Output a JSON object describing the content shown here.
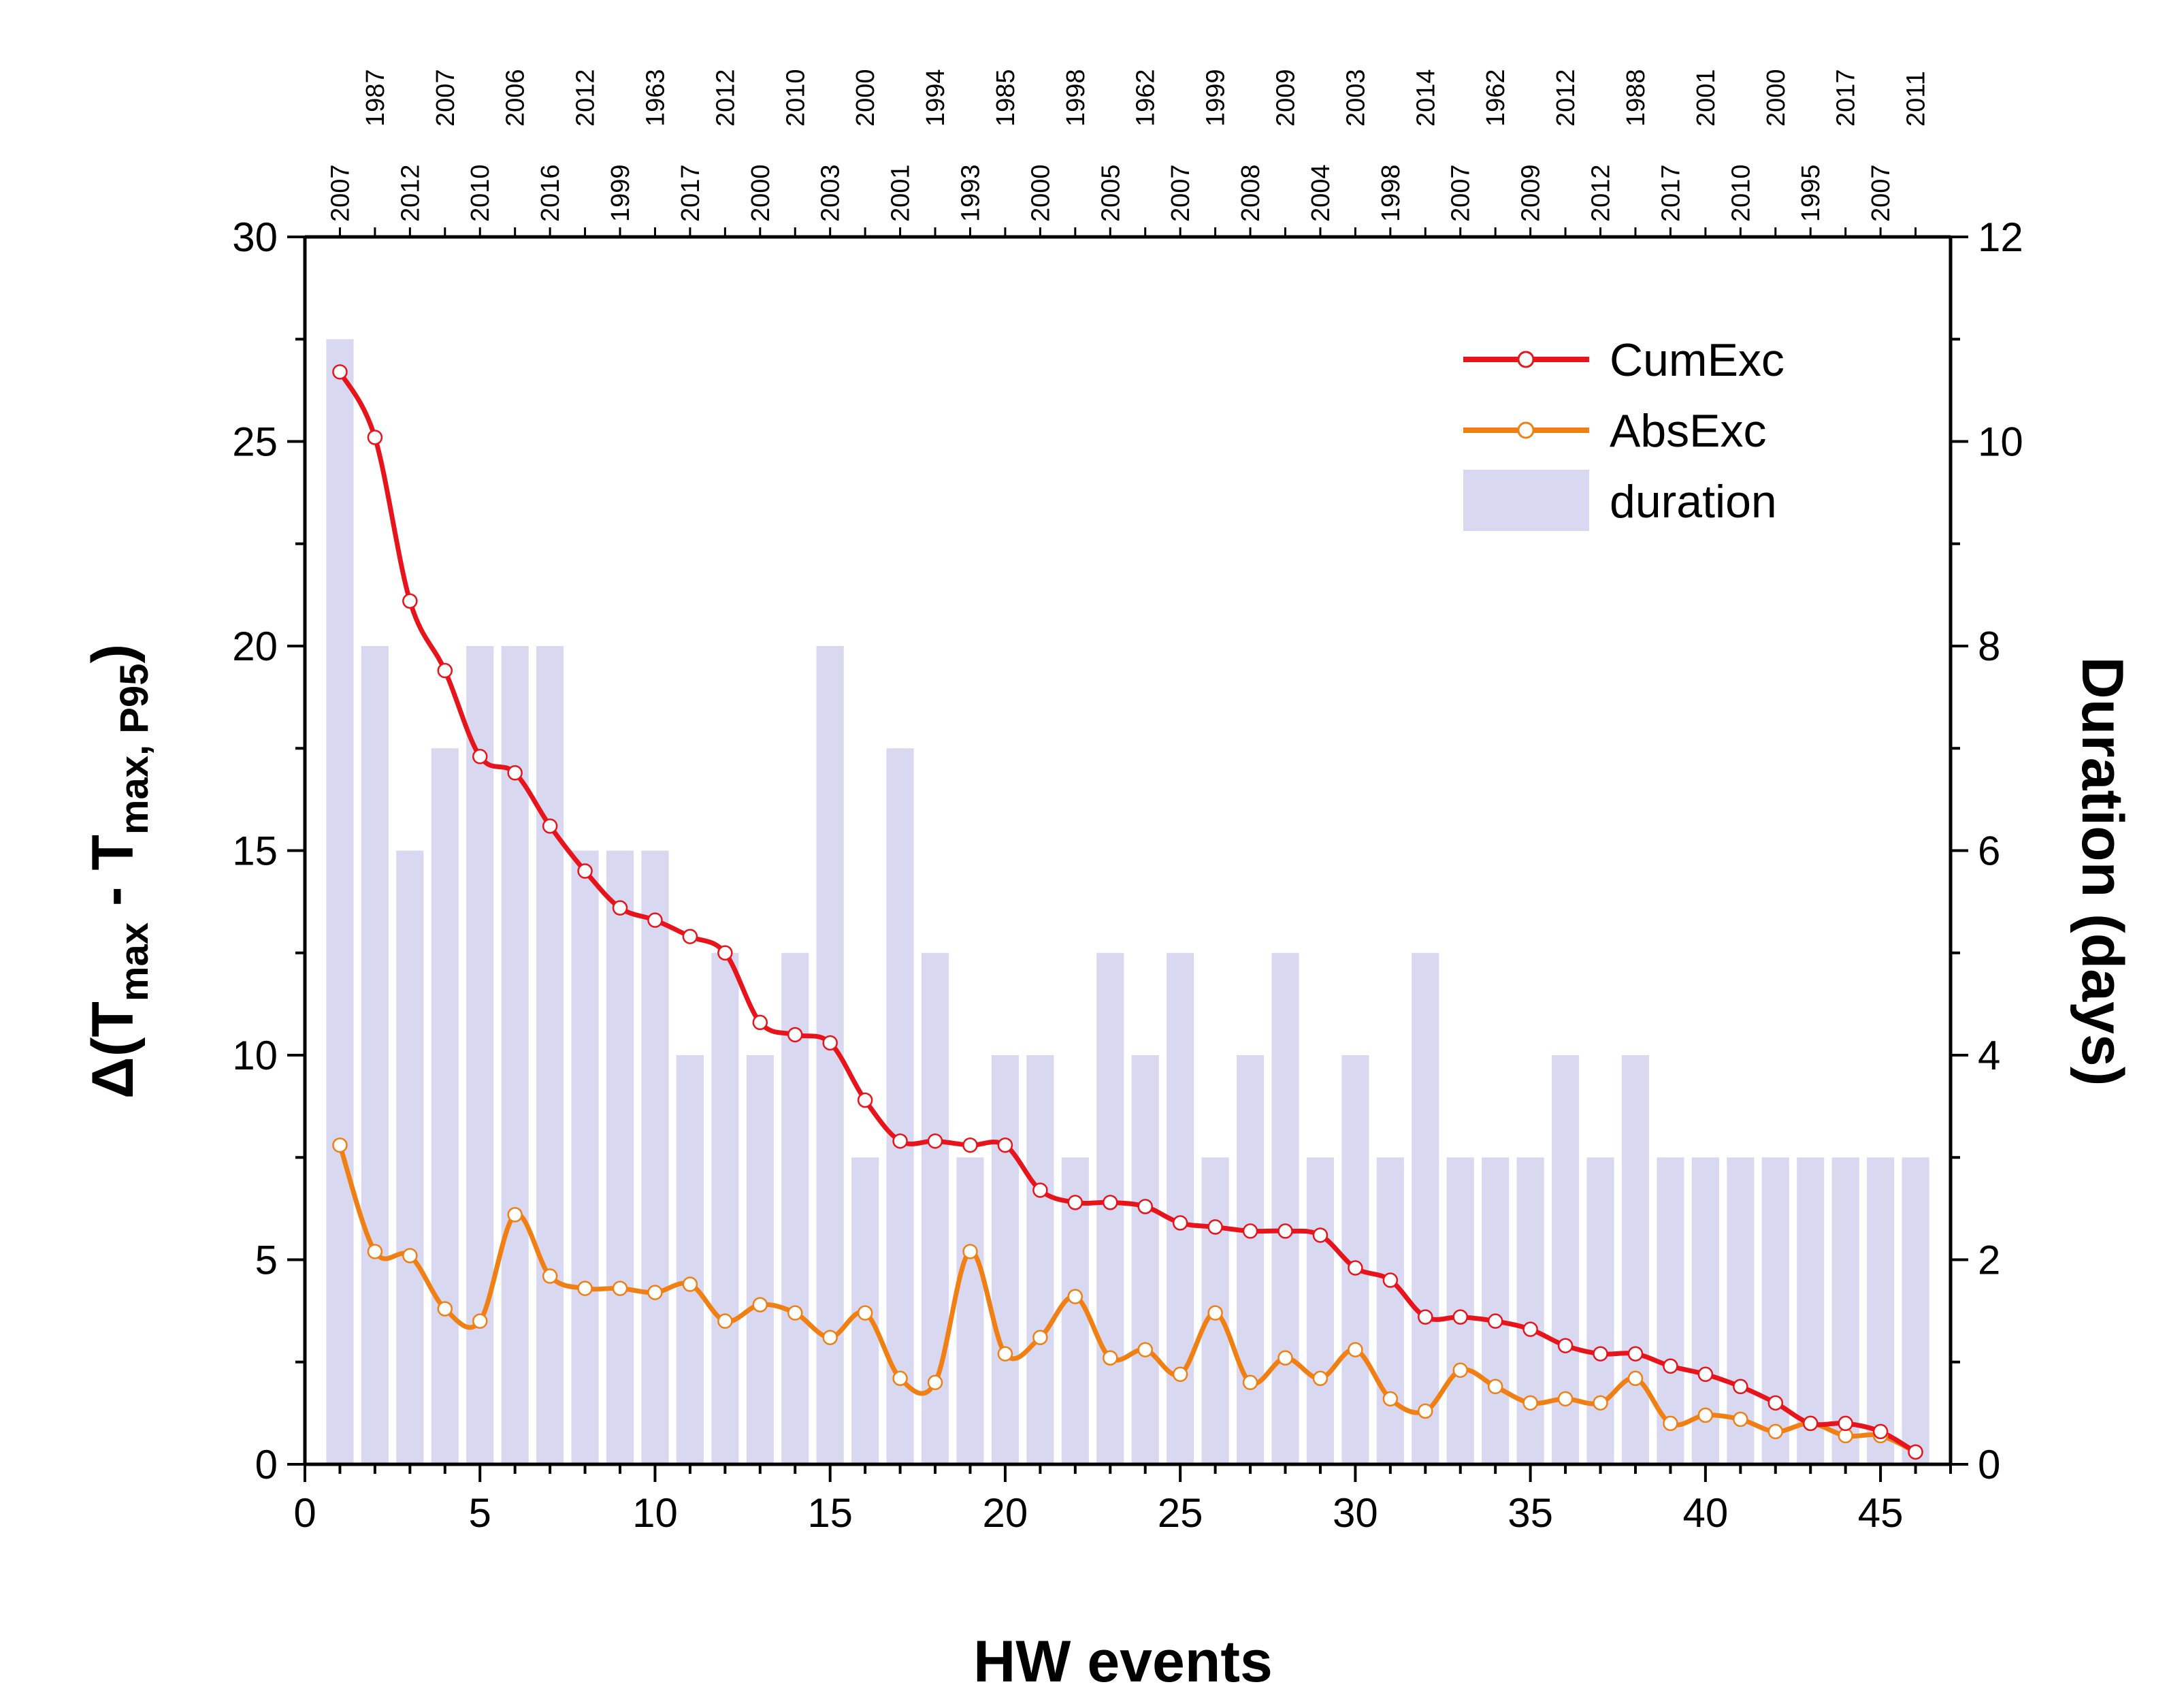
{
  "chart_data": {
    "type": "bar+line",
    "xlabel": "HW events",
    "ylabel_left": {
      "prefix": "Δ(T",
      "sub1": "max",
      "mid": " - T",
      "sub2": "max, P95",
      "suffix": ")"
    },
    "ylabel_right": "Duration (days)",
    "xlim": [
      0,
      47
    ],
    "ylim_left": [
      0,
      30
    ],
    "ylim_right": [
      0,
      12
    ],
    "xticks": [
      0,
      5,
      10,
      15,
      20,
      25,
      30,
      35,
      40,
      45
    ],
    "yticks_left": [
      0,
      5,
      10,
      15,
      20,
      25,
      30
    ],
    "yticks_right": [
      0,
      2,
      4,
      6,
      8,
      10,
      12
    ],
    "x": [
      1,
      2,
      3,
      4,
      5,
      6,
      7,
      8,
      9,
      10,
      11,
      12,
      13,
      14,
      15,
      16,
      17,
      18,
      19,
      20,
      21,
      22,
      23,
      24,
      25,
      26,
      27,
      28,
      29,
      30,
      31,
      32,
      33,
      34,
      35,
      36,
      37,
      38,
      39,
      40,
      41,
      42,
      43,
      44,
      45,
      46
    ],
    "years": [
      "2007",
      "1987",
      "2012",
      "2007",
      "2010",
      "2006",
      "2016",
      "2012",
      "1999",
      "1963",
      "2017",
      "2012",
      "2000",
      "2010",
      "2003",
      "2000",
      "2001",
      "1994",
      "1993",
      "1985",
      "2000",
      "1998",
      "2005",
      "1962",
      "2007",
      "1999",
      "2008",
      "2009",
      "2004",
      "2003",
      "1998",
      "2014",
      "2007",
      "1962",
      "2009",
      "2012",
      "2012",
      "1988",
      "2017",
      "2001",
      "2010",
      "2000",
      "1995",
      "2017",
      "2007",
      "2011"
    ],
    "series": [
      {
        "name": "CumExc",
        "axis": "left",
        "color": "#e8141c",
        "values": [
          26.7,
          25.1,
          21.1,
          19.4,
          17.3,
          16.9,
          15.6,
          14.5,
          13.6,
          13.3,
          12.9,
          12.5,
          10.8,
          10.5,
          10.3,
          8.9,
          7.9,
          7.9,
          7.8,
          7.8,
          6.7,
          6.4,
          6.4,
          6.3,
          5.9,
          5.8,
          5.7,
          5.7,
          5.6,
          4.8,
          4.5,
          3.6,
          3.6,
          3.5,
          3.3,
          2.9,
          2.7,
          2.7,
          2.4,
          2.2,
          1.9,
          1.5,
          1.0,
          1.0,
          0.8,
          0.3
        ]
      },
      {
        "name": "AbsExc",
        "axis": "left",
        "color": "#f07f14",
        "values": [
          7.8,
          5.2,
          5.1,
          3.8,
          3.5,
          6.1,
          4.6,
          4.3,
          4.3,
          4.2,
          4.4,
          3.5,
          3.9,
          3.7,
          3.1,
          3.7,
          2.1,
          2.0,
          5.2,
          2.7,
          3.1,
          4.1,
          2.6,
          2.8,
          2.2,
          3.7,
          2.0,
          2.6,
          2.1,
          2.8,
          1.6,
          1.3,
          2.3,
          1.9,
          1.5,
          1.6,
          1.5,
          2.1,
          1.0,
          1.2,
          1.1,
          0.8,
          1.0,
          0.7,
          0.7,
          0.3
        ]
      },
      {
        "name": "duration",
        "axis": "right",
        "type": "bar",
        "color": "#d8d8f0",
        "values": [
          11,
          8,
          6,
          7,
          8,
          8,
          8,
          6,
          6,
          6,
          4,
          5,
          4,
          5,
          8,
          3,
          7,
          5,
          3,
          4,
          4,
          3,
          5,
          4,
          5,
          3,
          4,
          5,
          3,
          4,
          3,
          5,
          3,
          3,
          3,
          4,
          3,
          4,
          3,
          3,
          3,
          3,
          3,
          3,
          3,
          3
        ]
      }
    ],
    "legend": {
      "position": "top-right",
      "entries": [
        "CumExc",
        "AbsExc",
        "duration"
      ]
    }
  }
}
